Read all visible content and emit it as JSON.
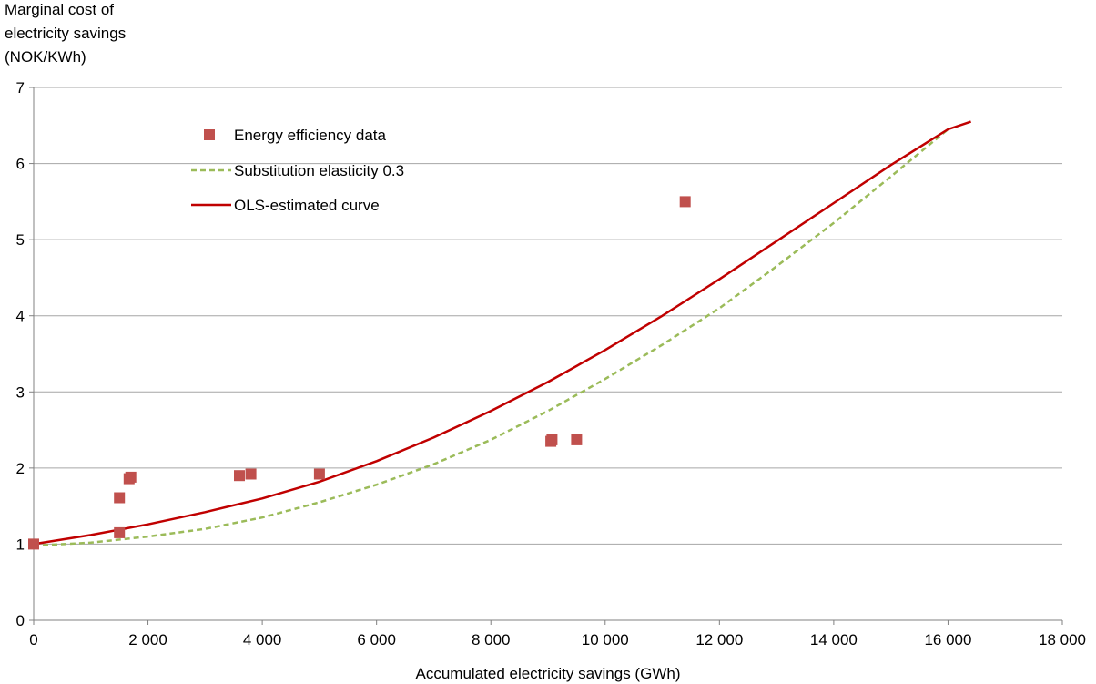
{
  "chart_data": {
    "type": "scatter",
    "ylabel_lines": [
      "Marginal cost of",
      "electricity savings",
      "(NOK/KWh)"
    ],
    "xlabel": "Accumulated electricity savings (GWh)",
    "xlim": [
      0,
      18000
    ],
    "ylim": [
      0,
      7
    ],
    "x_ticks": [
      0,
      2000,
      4000,
      6000,
      8000,
      10000,
      12000,
      14000,
      16000,
      18000
    ],
    "x_tick_labels": [
      "0",
      "2 000",
      "4 000",
      "6 000",
      "8 000",
      "10 000",
      "12 000",
      "14 000",
      "16 000",
      "18 000"
    ],
    "y_ticks": [
      0,
      1,
      2,
      3,
      4,
      5,
      6,
      7
    ],
    "y_tick_labels": [
      "0",
      "1",
      "2",
      "3",
      "4",
      "5",
      "6",
      "7"
    ],
    "grid": "horizontal",
    "legend_position": "top-left",
    "colors": {
      "points": "#c0504d",
      "ols": "#c00000",
      "substitution": "#9bbb59",
      "grid": "#a6a6a6",
      "axis": "#808080"
    },
    "series": [
      {
        "name": "Energy efficiency data",
        "kind": "points",
        "points": [
          [
            0,
            1.0
          ],
          [
            1500,
            1.15
          ],
          [
            1500,
            1.61
          ],
          [
            1670,
            1.86
          ],
          [
            1700,
            1.88
          ],
          [
            3600,
            1.9
          ],
          [
            3800,
            1.92
          ],
          [
            5000,
            1.92
          ],
          [
            9050,
            2.35
          ],
          [
            9070,
            2.37
          ],
          [
            9500,
            2.37
          ],
          [
            11400,
            5.5
          ]
        ]
      },
      {
        "name": "Substitution elasticity 0.3",
        "kind": "line",
        "style": "dashed",
        "points": [
          [
            0,
            0.98
          ],
          [
            1000,
            1.02
          ],
          [
            2000,
            1.1
          ],
          [
            3000,
            1.2
          ],
          [
            4000,
            1.35
          ],
          [
            5000,
            1.55
          ],
          [
            6000,
            1.78
          ],
          [
            7000,
            2.05
          ],
          [
            8000,
            2.37
          ],
          [
            9000,
            2.75
          ],
          [
            10000,
            3.17
          ],
          [
            11000,
            3.62
          ],
          [
            12000,
            4.1
          ],
          [
            13000,
            4.65
          ],
          [
            14000,
            5.22
          ],
          [
            15000,
            5.83
          ],
          [
            16000,
            6.45
          ]
        ]
      },
      {
        "name": "OLS-estimated curve",
        "kind": "line",
        "style": "solid",
        "points": [
          [
            0,
            1.0
          ],
          [
            1000,
            1.12
          ],
          [
            2000,
            1.26
          ],
          [
            3000,
            1.42
          ],
          [
            4000,
            1.6
          ],
          [
            5000,
            1.82
          ],
          [
            6000,
            2.09
          ],
          [
            7000,
            2.4
          ],
          [
            8000,
            2.75
          ],
          [
            9000,
            3.13
          ],
          [
            10000,
            3.55
          ],
          [
            11000,
            4.0
          ],
          [
            12000,
            4.48
          ],
          [
            13000,
            4.98
          ],
          [
            14000,
            5.48
          ],
          [
            15000,
            5.98
          ],
          [
            16000,
            6.45
          ],
          [
            16400,
            6.55
          ]
        ]
      }
    ]
  }
}
